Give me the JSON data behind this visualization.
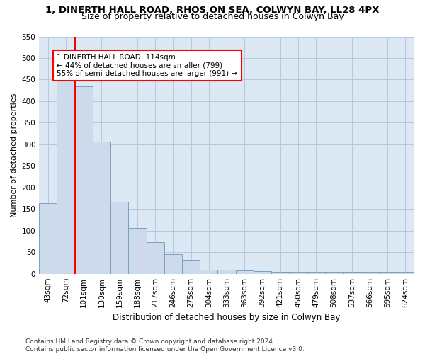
{
  "title": "1, DINERTH HALL ROAD, RHOS ON SEA, COLWYN BAY, LL28 4PX",
  "subtitle": "Size of property relative to detached houses in Colwyn Bay",
  "xlabel": "Distribution of detached houses by size in Colwyn Bay",
  "ylabel": "Number of detached properties",
  "categories": [
    "43sqm",
    "72sqm",
    "101sqm",
    "130sqm",
    "159sqm",
    "188sqm",
    "217sqm",
    "246sqm",
    "275sqm",
    "304sqm",
    "333sqm",
    "363sqm",
    "392sqm",
    "421sqm",
    "450sqm",
    "479sqm",
    "508sqm",
    "537sqm",
    "566sqm",
    "595sqm",
    "624sqm"
  ],
  "values": [
    163,
    450,
    435,
    307,
    167,
    106,
    74,
    45,
    33,
    10,
    10,
    8,
    6,
    4,
    4,
    4,
    4,
    4,
    4,
    4,
    5
  ],
  "bar_color": "#ccdaec",
  "bar_edge_color": "#7a9fc0",
  "bar_edge_width": 0.7,
  "vline_color": "red",
  "vline_x_index": 2,
  "annotation_text": "1 DINERTH HALL ROAD: 114sqm\n← 44% of detached houses are smaller (799)\n55% of semi-detached houses are larger (991) →",
  "annotation_box_color": "white",
  "annotation_box_edge_color": "red",
  "ylim": [
    0,
    550
  ],
  "yticks": [
    0,
    50,
    100,
    150,
    200,
    250,
    300,
    350,
    400,
    450,
    500,
    550
  ],
  "grid_color": "#b8c8dc",
  "bg_color": "#dce8f4",
  "footnote": "Contains HM Land Registry data © Crown copyright and database right 2024.\nContains public sector information licensed under the Open Government Licence v3.0.",
  "title_fontsize": 9.5,
  "subtitle_fontsize": 9,
  "xlabel_fontsize": 8.5,
  "ylabel_fontsize": 8,
  "tick_fontsize": 7.5,
  "annotation_fontsize": 7.5,
  "footnote_fontsize": 6.5
}
